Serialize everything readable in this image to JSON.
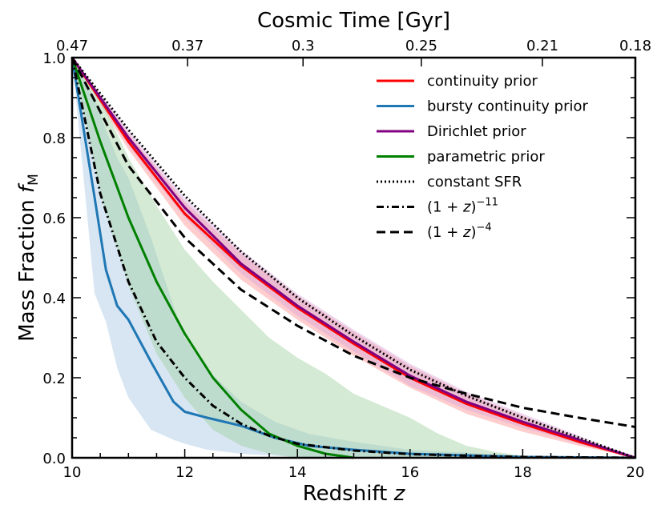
{
  "chart_data": {
    "type": "line",
    "title": "",
    "xlabel": "Redshift",
    "xlabel_var": "z",
    "ylabel": "Mass Fraction",
    "ylabel_var": "f",
    "ylabel_sub": "M",
    "top_xlabel": "Cosmic Time [Gyr]",
    "xlim": [
      10,
      20
    ],
    "ylim": [
      0,
      1
    ],
    "x_ticks": [
      10,
      12,
      14,
      16,
      18,
      20
    ],
    "x_tick_labels": [
      "10",
      "12",
      "14",
      "16",
      "18",
      "20"
    ],
    "y_ticks": [
      0,
      0.2,
      0.4,
      0.6,
      0.8,
      1.0
    ],
    "y_tick_labels": [
      "0.0",
      "0.2",
      "0.4",
      "0.6",
      "0.8",
      "1.0"
    ],
    "top_ticks_z": [
      10,
      12.05,
      14.1,
      16.2,
      18.35,
      20
    ],
    "top_tick_labels": [
      "0.47",
      "0.37",
      "0.3",
      "0.25",
      "0.21",
      "0.18"
    ],
    "grid": false,
    "legend_position": "top-right",
    "series": [
      {
        "name": "continuity prior",
        "color": "#ff0000",
        "style": "solid",
        "x": [
          10,
          11,
          12,
          13,
          14,
          15,
          16,
          17,
          18,
          19,
          20
        ],
        "y": [
          1.0,
          0.79,
          0.61,
          0.48,
          0.375,
          0.285,
          0.2,
          0.135,
          0.085,
          0.04,
          0.0
        ],
        "band_upper": [
          1.0,
          0.81,
          0.64,
          0.51,
          0.405,
          0.315,
          0.23,
          0.16,
          0.105,
          0.05,
          0.0
        ],
        "band_lower": [
          1.0,
          0.77,
          0.58,
          0.445,
          0.345,
          0.255,
          0.175,
          0.11,
          0.065,
          0.03,
          0.0
        ],
        "band_color": "#ff9090"
      },
      {
        "name": "bursty continuity prior",
        "color": "#1f77b4",
        "style": "solid",
        "x": [
          10,
          10.4,
          10.6,
          10.8,
          11.0,
          11.4,
          11.8,
          12.0,
          12.4,
          13.0,
          13.6,
          14.2,
          15.0,
          16.0,
          18.0,
          20.0
        ],
        "y": [
          1.0,
          0.65,
          0.47,
          0.38,
          0.345,
          0.24,
          0.14,
          0.115,
          0.1,
          0.08,
          0.05,
          0.03,
          0.02,
          0.01,
          0.002,
          0.0
        ],
        "band_upper": [
          1.0,
          0.9,
          0.82,
          0.75,
          0.7,
          0.55,
          0.38,
          0.3,
          0.22,
          0.14,
          0.09,
          0.06,
          0.04,
          0.02,
          0.005,
          0.0
        ],
        "band_lower": [
          1.0,
          0.41,
          0.34,
          0.225,
          0.15,
          0.07,
          0.045,
          0.035,
          0.02,
          0.01,
          0.005,
          0.0,
          0.0,
          0.0,
          0.0,
          0.0
        ],
        "band_color": "#a9c8e4"
      },
      {
        "name": "Dirichlet prior",
        "color": "#800080",
        "style": "solid",
        "x": [
          10,
          11,
          12,
          13,
          14,
          15,
          16,
          17,
          18,
          19,
          20
        ],
        "y": [
          1.0,
          0.8,
          0.625,
          0.485,
          0.38,
          0.29,
          0.205,
          0.14,
          0.09,
          0.045,
          0.0
        ],
        "band_upper": [
          1.0,
          0.82,
          0.65,
          0.52,
          0.41,
          0.32,
          0.235,
          0.165,
          0.11,
          0.055,
          0.0
        ],
        "band_lower": [
          1.0,
          0.78,
          0.6,
          0.46,
          0.355,
          0.265,
          0.18,
          0.12,
          0.075,
          0.035,
          0.0
        ],
        "band_color": "#d9a9d9"
      },
      {
        "name": "parametric prior",
        "color": "#008000",
        "style": "solid",
        "x": [
          10,
          10.5,
          11,
          11.5,
          12,
          12.5,
          13,
          13.5,
          14,
          14.5,
          15
        ],
        "y": [
          1.0,
          0.79,
          0.6,
          0.44,
          0.31,
          0.2,
          0.12,
          0.06,
          0.03,
          0.01,
          0.0
        ],
        "band_upper": [
          1.0,
          0.9,
          0.75,
          0.63,
          0.52,
          0.44,
          0.37,
          0.3,
          0.25,
          0.21,
          0.16,
          0.1,
          0.06,
          0.03,
          0.015,
          0.005,
          0.0
        ],
        "band_lower": [
          1.0,
          0.66,
          0.43,
          0.26,
          0.15,
          0.07,
          0.03,
          0.01,
          0.0,
          0.0,
          0.0,
          0.0,
          0.0,
          0.0,
          0.0,
          0.0,
          0.0
        ],
        "band_x": [
          10,
          10.5,
          11,
          11.5,
          12,
          12.5,
          13,
          13.5,
          14,
          14.5,
          15,
          16,
          16.5,
          17,
          17.5,
          18,
          18.5
        ],
        "band_color": "#9fd09f"
      },
      {
        "name": "constant SFR",
        "color": "#000000",
        "style": "dotted",
        "x": [
          10,
          11,
          12,
          13,
          14,
          15,
          16,
          17,
          18,
          19,
          20
        ],
        "y": [
          1.0,
          0.82,
          0.655,
          0.515,
          0.4,
          0.305,
          0.22,
          0.155,
          0.1,
          0.05,
          0.0
        ]
      },
      {
        "name": "(1+z)^-11",
        "color": "#000000",
        "style": "dashdot",
        "x": [
          10,
          10.5,
          11,
          11.5,
          12,
          12.5,
          13,
          13.5,
          14,
          15,
          16,
          17,
          18,
          19,
          20
        ],
        "y": [
          1.0,
          0.66,
          0.44,
          0.29,
          0.2,
          0.13,
          0.085,
          0.055,
          0.035,
          0.018,
          0.009,
          0.005,
          0.002,
          0.001,
          0.0
        ]
      },
      {
        "name": "(1+z)^-4",
        "color": "#000000",
        "style": "dashed",
        "x": [
          10,
          11,
          12,
          13,
          14,
          15,
          16,
          17,
          18,
          19,
          20
        ],
        "y": [
          1.0,
          0.73,
          0.55,
          0.42,
          0.33,
          0.255,
          0.2,
          0.16,
          0.125,
          0.1,
          0.077
        ]
      }
    ]
  }
}
